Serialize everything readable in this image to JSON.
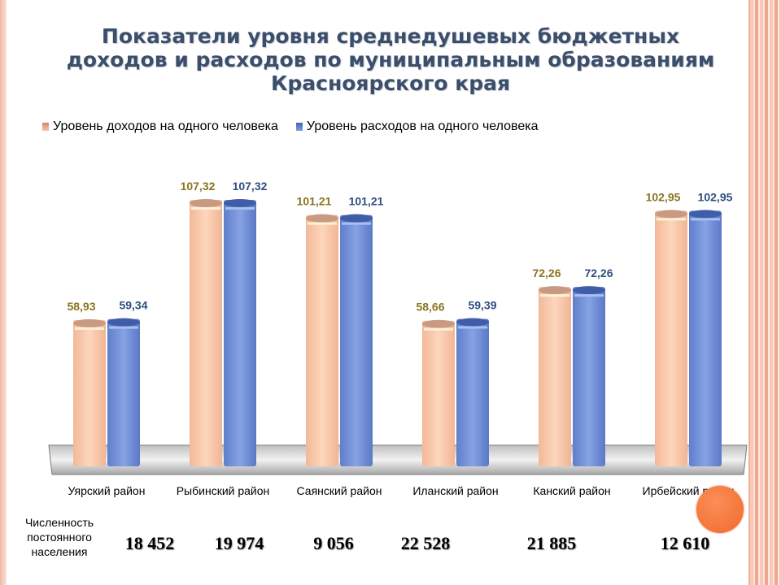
{
  "title": "Показатели уровня среднедушевых бюджетных доходов и расходов по муниципальным образованиям Красноярского края",
  "legend": {
    "income_label": "Уровень доходов на одного человека",
    "expense_label": "Уровень расходов на одного человека"
  },
  "colors": {
    "income": "#f8c6a8",
    "expense": "#6f8fd8",
    "income_label": "#8a7420",
    "expense_label": "#2f4d7f"
  },
  "chart_data": {
    "type": "bar",
    "title": "Показатели уровня среднедушевых бюджетных доходов и расходов по муниципальным образованиям Красноярского края",
    "categories": [
      "Уярский район",
      "Рыбинский район",
      "Саянский район",
      "Иланский район",
      "Канский район",
      "Ирбейский район"
    ],
    "series": [
      {
        "name": "Уровень доходов на одного человека",
        "values": [
          58.93,
          107.32,
          101.21,
          58.66,
          72.26,
          102.95
        ],
        "labels": [
          "58,93",
          "107,32",
          "101,21",
          "58,66",
          "72,26",
          "102,95"
        ]
      },
      {
        "name": "Уровень расходов на одного человека",
        "values": [
          59.34,
          107.32,
          101.21,
          59.39,
          72.26,
          102.95
        ],
        "labels": [
          "59,34",
          "107,32",
          "101,21",
          "59,39",
          "72,26",
          "102,95"
        ]
      }
    ],
    "ylim": [
      0,
      120
    ],
    "legend_position": "top-left",
    "grid": false
  },
  "population": {
    "label": "Численность постоянного населения",
    "values": [
      "18 452",
      "19 974",
      "9 056",
      "22 528",
      "21 885",
      "12 610"
    ]
  }
}
